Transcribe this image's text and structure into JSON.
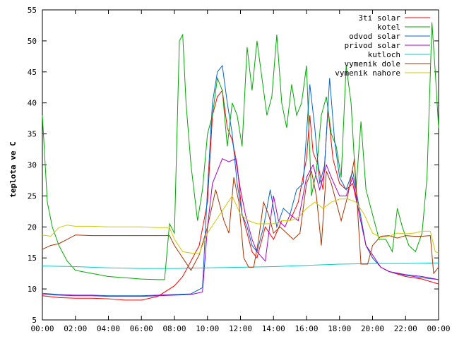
{
  "chart_data": {
    "type": "line",
    "title": "",
    "xlabel": "",
    "ylabel": "teplota ve C",
    "ylim": [
      5,
      55
    ],
    "xlim": [
      0,
      24
    ],
    "y_ticks": [
      5,
      10,
      15,
      20,
      25,
      30,
      35,
      40,
      45,
      50,
      55
    ],
    "x_ticks": [
      0,
      2,
      4,
      6,
      8,
      10,
      12,
      14,
      16,
      18,
      20,
      22,
      24
    ],
    "x_tick_labels": [
      "00:00",
      "02:00",
      "04:00",
      "06:00",
      "08:00",
      "10:00",
      "12:00",
      "14:00",
      "16:00",
      "18:00",
      "20:00",
      "22:00",
      "00:00"
    ],
    "grid": false,
    "legend_position": "top-right",
    "series": [
      {
        "name": "3ti solar",
        "color": "#ff0000",
        "points": [
          [
            0,
            8.9
          ],
          [
            1,
            8.6
          ],
          [
            2,
            8.5
          ],
          [
            3,
            8.5
          ],
          [
            4,
            8.4
          ],
          [
            5,
            8.2
          ],
          [
            6,
            8.2
          ],
          [
            7,
            8.8
          ],
          [
            8,
            10.5
          ],
          [
            8.5,
            12
          ],
          [
            9,
            14.5
          ],
          [
            9.5,
            17
          ],
          [
            10,
            24
          ],
          [
            10.3,
            38
          ],
          [
            10.6,
            41
          ],
          [
            10.9,
            42
          ],
          [
            11.2,
            36
          ],
          [
            11.5,
            34
          ],
          [
            11.8,
            30
          ],
          [
            12.1,
            22
          ],
          [
            12.4,
            19
          ],
          [
            12.7,
            16
          ],
          [
            13,
            15
          ],
          [
            13.5,
            20
          ],
          [
            14,
            18
          ],
          [
            14.5,
            21
          ],
          [
            15,
            21
          ],
          [
            15.5,
            24
          ],
          [
            16,
            31
          ],
          [
            16.2,
            38
          ],
          [
            16.4,
            32
          ],
          [
            16.7,
            30
          ],
          [
            17,
            26
          ],
          [
            17.3,
            39
          ],
          [
            17.6,
            31
          ],
          [
            18,
            27
          ],
          [
            18.4,
            26
          ],
          [
            18.8,
            27
          ],
          [
            19.2,
            22
          ],
          [
            19.6,
            17
          ],
          [
            20,
            15
          ],
          [
            20.5,
            13.5
          ],
          [
            21,
            12.8
          ],
          [
            22,
            12
          ],
          [
            23,
            11.6
          ],
          [
            24,
            10.8
          ]
        ]
      },
      {
        "name": "kotel",
        "color": "#00aa00",
        "points": [
          [
            0,
            38
          ],
          [
            0.3,
            24
          ],
          [
            0.6,
            20
          ],
          [
            1,
            17
          ],
          [
            1.5,
            14.5
          ],
          [
            2,
            13
          ],
          [
            3,
            12.5
          ],
          [
            4,
            12
          ],
          [
            5,
            11.8
          ],
          [
            6,
            11.6
          ],
          [
            7,
            11.5
          ],
          [
            7.4,
            11.5
          ],
          [
            7.7,
            20.5
          ],
          [
            8,
            19
          ],
          [
            8.3,
            50
          ],
          [
            8.5,
            51
          ],
          [
            8.7,
            40
          ],
          [
            9,
            30
          ],
          [
            9.4,
            21
          ],
          [
            9.7,
            26
          ],
          [
            10,
            35
          ],
          [
            10.3,
            38
          ],
          [
            10.6,
            44
          ],
          [
            10.9,
            42
          ],
          [
            11.2,
            33
          ],
          [
            11.5,
            40
          ],
          [
            11.8,
            38
          ],
          [
            12.1,
            33
          ],
          [
            12.4,
            49
          ],
          [
            12.7,
            42
          ],
          [
            13,
            50
          ],
          [
            13.3,
            44
          ],
          [
            13.6,
            38
          ],
          [
            13.9,
            41
          ],
          [
            14.2,
            51
          ],
          [
            14.5,
            40
          ],
          [
            14.8,
            36
          ],
          [
            15.1,
            43
          ],
          [
            15.4,
            38
          ],
          [
            15.7,
            40
          ],
          [
            16,
            46
          ],
          [
            16.3,
            25
          ],
          [
            16.6,
            29
          ],
          [
            16.9,
            38
          ],
          [
            17.2,
            41
          ],
          [
            17.5,
            35
          ],
          [
            17.8,
            33
          ],
          [
            18.1,
            28
          ],
          [
            18.4,
            46
          ],
          [
            18.7,
            40
          ],
          [
            19,
            26
          ],
          [
            19.3,
            37
          ],
          [
            19.6,
            26
          ],
          [
            20,
            22
          ],
          [
            20.4,
            18
          ],
          [
            20.8,
            18
          ],
          [
            21.2,
            16
          ],
          [
            21.5,
            23
          ],
          [
            21.8,
            20
          ],
          [
            22.2,
            17
          ],
          [
            22.6,
            16
          ],
          [
            23,
            19
          ],
          [
            23.3,
            28
          ],
          [
            23.6,
            53
          ],
          [
            23.8,
            45
          ],
          [
            24,
            36
          ]
        ]
      },
      {
        "name": "odvod solar",
        "color": "#0066cc",
        "points": [
          [
            0,
            9.3
          ],
          [
            1,
            9.1
          ],
          [
            2,
            9.0
          ],
          [
            3,
            9.0
          ],
          [
            4,
            8.9
          ],
          [
            5,
            8.9
          ],
          [
            6,
            8.9
          ],
          [
            7,
            9.0
          ],
          [
            8,
            9.1
          ],
          [
            9,
            9.2
          ],
          [
            9.7,
            10.2
          ],
          [
            10,
            26
          ],
          [
            10.3,
            40
          ],
          [
            10.6,
            45
          ],
          [
            10.9,
            46
          ],
          [
            11.2,
            40
          ],
          [
            11.5,
            35
          ],
          [
            11.8,
            27
          ],
          [
            12.1,
            22
          ],
          [
            12.4,
            20
          ],
          [
            12.7,
            17
          ],
          [
            13,
            16
          ],
          [
            13.4,
            20
          ],
          [
            13.8,
            26
          ],
          [
            14.2,
            20
          ],
          [
            14.6,
            23
          ],
          [
            15,
            22
          ],
          [
            15.4,
            26
          ],
          [
            15.8,
            27
          ],
          [
            16,
            35
          ],
          [
            16.2,
            43
          ],
          [
            16.5,
            36
          ],
          [
            16.8,
            27
          ],
          [
            17.1,
            30
          ],
          [
            17.4,
            44
          ],
          [
            17.7,
            34
          ],
          [
            18,
            28
          ],
          [
            18.4,
            26
          ],
          [
            18.8,
            29
          ],
          [
            19.2,
            23
          ],
          [
            19.6,
            17
          ],
          [
            20,
            15
          ],
          [
            20.5,
            13.5
          ],
          [
            21,
            12.8
          ],
          [
            22,
            12.2
          ],
          [
            23,
            11.8
          ],
          [
            24,
            11.5
          ]
        ]
      },
      {
        "name": "privod solar",
        "color": "#aa00cc",
        "points": [
          [
            0,
            9.1
          ],
          [
            1,
            9.0
          ],
          [
            2,
            8.9
          ],
          [
            3,
            8.9
          ],
          [
            4,
            8.8
          ],
          [
            5,
            8.8
          ],
          [
            6,
            8.8
          ],
          [
            7,
            8.9
          ],
          [
            8,
            9.0
          ],
          [
            9,
            9.1
          ],
          [
            9.7,
            9.5
          ],
          [
            10,
            20
          ],
          [
            10.3,
            27
          ],
          [
            10.6,
            29
          ],
          [
            10.9,
            31
          ],
          [
            11.3,
            30.5
          ],
          [
            11.7,
            31
          ],
          [
            12,
            26
          ],
          [
            12.3,
            22
          ],
          [
            12.7,
            18
          ],
          [
            13,
            16
          ],
          [
            13.5,
            14.5
          ],
          [
            14,
            25
          ],
          [
            14.3,
            21
          ],
          [
            14.7,
            20
          ],
          [
            15,
            22
          ],
          [
            15.5,
            21
          ],
          [
            16,
            28
          ],
          [
            16.4,
            30
          ],
          [
            16.8,
            26
          ],
          [
            17.2,
            30
          ],
          [
            17.5,
            28
          ],
          [
            18,
            25
          ],
          [
            18.4,
            25
          ],
          [
            18.8,
            28
          ],
          [
            19.2,
            22
          ],
          [
            19.6,
            17
          ],
          [
            20,
            15.5
          ],
          [
            20.5,
            13.5
          ],
          [
            21,
            12.8
          ],
          [
            22,
            12.3
          ],
          [
            23,
            12
          ],
          [
            24,
            11.5
          ]
        ]
      },
      {
        "name": "kutloch",
        "color": "#00cccc",
        "points": [
          [
            0,
            13.7
          ],
          [
            2,
            13.6
          ],
          [
            4,
            13.4
          ],
          [
            6,
            13.3
          ],
          [
            8,
            13.3
          ],
          [
            10,
            13.4
          ],
          [
            12,
            13.5
          ],
          [
            14,
            13.6
          ],
          [
            16,
            13.8
          ],
          [
            18,
            14.0
          ],
          [
            20,
            14.1
          ],
          [
            22,
            14.1
          ],
          [
            24,
            14.2
          ]
        ]
      },
      {
        "name": "vymenik dole",
        "color": "#aa3300",
        "points": [
          [
            0,
            16.4
          ],
          [
            0.5,
            17
          ],
          [
            1,
            17.3
          ],
          [
            1.5,
            18
          ],
          [
            2,
            18.7
          ],
          [
            3,
            18.6
          ],
          [
            4,
            18.6
          ],
          [
            5,
            18.6
          ],
          [
            6,
            18.6
          ],
          [
            7,
            18.6
          ],
          [
            7.7,
            18.6
          ],
          [
            8,
            17
          ],
          [
            8.5,
            15
          ],
          [
            9,
            13
          ],
          [
            9.5,
            15.5
          ],
          [
            10,
            20
          ],
          [
            10.5,
            26
          ],
          [
            11,
            21
          ],
          [
            11.3,
            19
          ],
          [
            11.6,
            28
          ],
          [
            11.9,
            24
          ],
          [
            12.2,
            15
          ],
          [
            12.5,
            13.5
          ],
          [
            12.8,
            13.5
          ],
          [
            13.1,
            18
          ],
          [
            13.4,
            24
          ],
          [
            13.7,
            22
          ],
          [
            14,
            19
          ],
          [
            14.4,
            20
          ],
          [
            14.8,
            19
          ],
          [
            15.2,
            18
          ],
          [
            15.6,
            19
          ],
          [
            16,
            27
          ],
          [
            16.3,
            29
          ],
          [
            16.6,
            25
          ],
          [
            16.9,
            17
          ],
          [
            17.2,
            29
          ],
          [
            17.5,
            27
          ],
          [
            17.8,
            24
          ],
          [
            18.1,
            21
          ],
          [
            18.5,
            25
          ],
          [
            18.9,
            31
          ],
          [
            19.3,
            14
          ],
          [
            19.7,
            14
          ],
          [
            20,
            17
          ],
          [
            20.5,
            18.5
          ],
          [
            21,
            18.6
          ],
          [
            21.5,
            18.2
          ],
          [
            22,
            18.6
          ],
          [
            22.5,
            18.5
          ],
          [
            23,
            18.5
          ],
          [
            23.5,
            18.6
          ],
          [
            23.7,
            12.5
          ],
          [
            24,
            13.5
          ]
        ]
      },
      {
        "name": "vymenik nahore",
        "color": "#cccc00",
        "points": [
          [
            0,
            18.7
          ],
          [
            0.5,
            18.5
          ],
          [
            1,
            19.9
          ],
          [
            1.5,
            20.3
          ],
          [
            2,
            20.1
          ],
          [
            3,
            20.1
          ],
          [
            4,
            20.0
          ],
          [
            5,
            20.0
          ],
          [
            6,
            20.0
          ],
          [
            7,
            19.9
          ],
          [
            7.7,
            19.9
          ],
          [
            8,
            18
          ],
          [
            8.5,
            16
          ],
          [
            9,
            15.8
          ],
          [
            9.5,
            15.7
          ],
          [
            10,
            19
          ],
          [
            10.5,
            21
          ],
          [
            11,
            23
          ],
          [
            11.5,
            25
          ],
          [
            12,
            22
          ],
          [
            12.5,
            21
          ],
          [
            13,
            20.5
          ],
          [
            13.5,
            20.5
          ],
          [
            14,
            20.5
          ],
          [
            14.5,
            21
          ],
          [
            15,
            21
          ],
          [
            15.5,
            21.5
          ],
          [
            16,
            23
          ],
          [
            16.5,
            24
          ],
          [
            17,
            23
          ],
          [
            17.5,
            24
          ],
          [
            18,
            24.5
          ],
          [
            18.5,
            24.5
          ],
          [
            19,
            24
          ],
          [
            19.5,
            22
          ],
          [
            20,
            19
          ],
          [
            20.5,
            18.3
          ],
          [
            21,
            18.5
          ],
          [
            21.5,
            19
          ],
          [
            22,
            18.9
          ],
          [
            22.5,
            19
          ],
          [
            23,
            19.3
          ],
          [
            23.5,
            19.3
          ],
          [
            23.8,
            16
          ],
          [
            24,
            15.8
          ]
        ]
      }
    ]
  }
}
